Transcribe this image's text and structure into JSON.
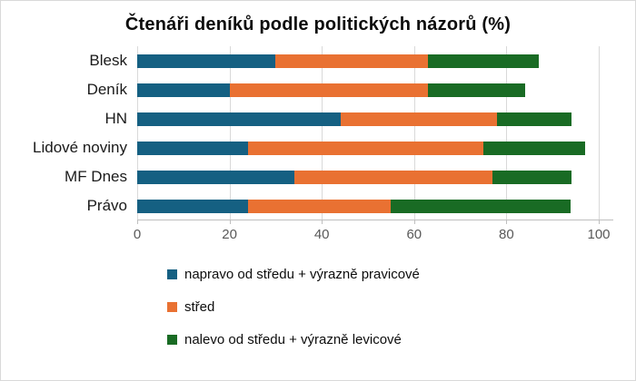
{
  "title": "Čtenáři deníků podle politických názorů (%)",
  "chart_data": {
    "type": "bar",
    "orientation": "horizontal",
    "stacked": true,
    "title": "Čtenáři deníků podle politických názorů (%)",
    "categories": [
      "Blesk",
      "Deník",
      "HN",
      "Lidové noviny",
      "MF Dnes",
      "Právo"
    ],
    "series": [
      {
        "name": "napravo od středu + výrazně pravicové",
        "color": "#156082",
        "values": [
          30,
          20,
          44,
          24,
          34,
          24
        ]
      },
      {
        "name": "střed",
        "color": "#E97132",
        "values": [
          33,
          43,
          34,
          51,
          43,
          31
        ]
      },
      {
        "name": "nalevo od středu + výrazně levicové",
        "color": "#196B24",
        "values": [
          24,
          21,
          16,
          22,
          17,
          39
        ]
      }
    ],
    "xlim": [
      0,
      100
    ],
    "x_ticks": [
      0,
      20,
      40,
      60,
      80,
      100
    ],
    "xlabel": "",
    "ylabel": "",
    "grid": true,
    "legend_position": "bottom-left",
    "colors": {
      "gridline": "#D9D9D9",
      "axis_line": "#BFBFBF",
      "axis_label": "#595959",
      "text": "#0D0D0D",
      "background": "#FFFFFF",
      "border": "#D9D9D9"
    }
  }
}
